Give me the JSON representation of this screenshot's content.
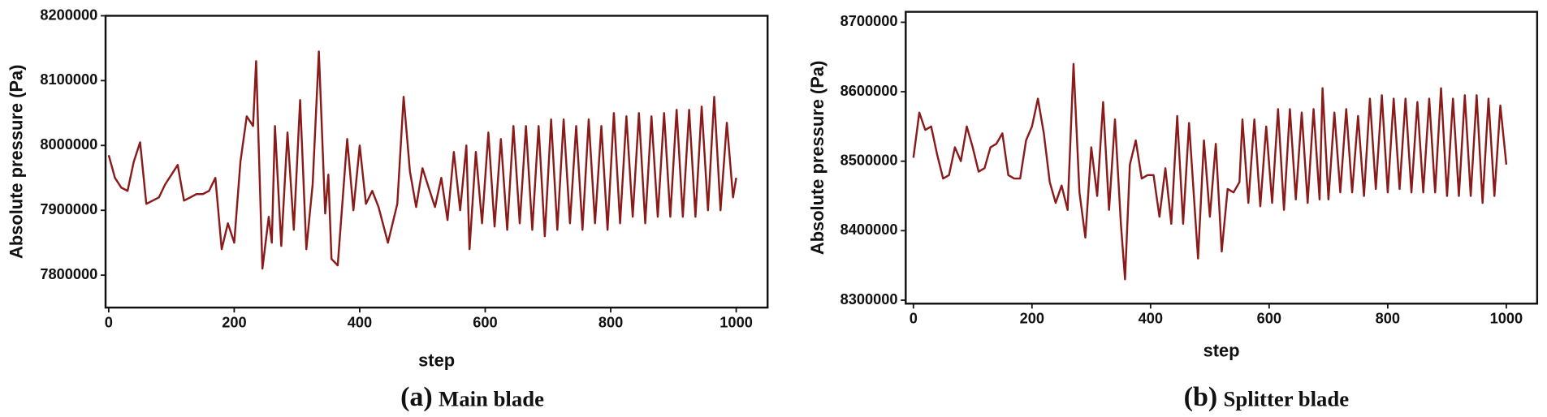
{
  "chart_data": [
    {
      "type": "line",
      "xlabel": "step",
      "ylabel": "Absolute pressure (Pa)",
      "caption_label": "(a)",
      "caption": "Main blade",
      "color": "#8b1a1a",
      "xlim": [
        -5,
        1050
      ],
      "xticks": [
        0,
        200,
        400,
        600,
        800,
        1000
      ],
      "ylim": [
        7750000,
        8200000
      ],
      "yticks": [
        7800000,
        7900000,
        8000000,
        8100000,
        8200000
      ],
      "grid": false,
      "x": [
        0,
        10,
        20,
        30,
        40,
        50,
        60,
        70,
        80,
        90,
        100,
        110,
        120,
        130,
        140,
        150,
        160,
        170,
        180,
        190,
        200,
        210,
        220,
        230,
        235,
        245,
        255,
        260,
        265,
        275,
        285,
        295,
        305,
        315,
        325,
        335,
        345,
        350,
        355,
        365,
        380,
        390,
        400,
        410,
        420,
        430,
        445,
        460,
        470,
        480,
        490,
        500,
        510,
        520,
        530,
        540,
        550,
        560,
        570,
        575,
        585,
        595,
        605,
        615,
        625,
        635,
        645,
        655,
        665,
        675,
        685,
        695,
        705,
        715,
        725,
        735,
        745,
        755,
        765,
        775,
        785,
        795,
        805,
        815,
        825,
        835,
        845,
        855,
        865,
        875,
        885,
        895,
        905,
        915,
        925,
        935,
        945,
        955,
        965,
        975,
        985,
        995,
        1000
      ],
      "values": [
        7985000,
        7950000,
        7935000,
        7930000,
        7975000,
        8005000,
        7910000,
        7915000,
        7920000,
        7940000,
        7955000,
        7970000,
        7915000,
        7920000,
        7925000,
        7925000,
        7930000,
        7950000,
        7840000,
        7880000,
        7850000,
        7975000,
        8045000,
        8030000,
        8130000,
        7810000,
        7890000,
        7850000,
        8030000,
        7845000,
        8020000,
        7870000,
        8070000,
        7840000,
        7940000,
        8145000,
        7895000,
        7955000,
        7825000,
        7815000,
        8010000,
        7900000,
        8000000,
        7910000,
        7930000,
        7905000,
        7850000,
        7910000,
        8075000,
        7960000,
        7905000,
        7965000,
        7935000,
        7905000,
        7950000,
        7885000,
        7990000,
        7900000,
        8000000,
        7840000,
        7990000,
        7880000,
        8020000,
        7875000,
        8010000,
        7870000,
        8030000,
        7880000,
        8030000,
        7870000,
        8030000,
        7860000,
        8040000,
        7870000,
        8040000,
        7880000,
        8030000,
        7870000,
        8040000,
        7880000,
        8030000,
        7870000,
        8050000,
        7880000,
        8045000,
        7890000,
        8050000,
        7880000,
        8045000,
        7890000,
        8050000,
        7890000,
        8055000,
        7890000,
        8055000,
        7890000,
        8060000,
        7900000,
        8075000,
        7900000,
        8035000,
        7920000,
        7950000
      ]
    },
    {
      "type": "line",
      "xlabel": "step",
      "ylabel": "Absolute pressure (Pa)",
      "caption_label": "(b)",
      "caption": "Splitter blade",
      "color": "#8b1a1a",
      "xlim": [
        -13,
        1052
      ],
      "xticks": [
        0,
        200,
        400,
        600,
        800,
        1000
      ],
      "ylim": [
        8295000,
        8715000
      ],
      "yticks": [
        8300000,
        8400000,
        8500000,
        8600000,
        8700000
      ],
      "grid": false,
      "x": [
        0,
        10,
        20,
        30,
        40,
        50,
        60,
        70,
        80,
        90,
        100,
        110,
        120,
        130,
        140,
        150,
        160,
        170,
        180,
        190,
        200,
        210,
        220,
        230,
        240,
        250,
        260,
        270,
        280,
        290,
        300,
        310,
        320,
        330,
        340,
        350,
        357,
        365,
        375,
        385,
        395,
        405,
        415,
        425,
        435,
        445,
        455,
        465,
        480,
        490,
        500,
        510,
        520,
        530,
        540,
        550,
        555,
        565,
        575,
        585,
        595,
        605,
        615,
        625,
        635,
        645,
        655,
        665,
        675,
        685,
        690,
        700,
        710,
        720,
        730,
        740,
        750,
        760,
        770,
        780,
        790,
        800,
        810,
        820,
        830,
        840,
        850,
        860,
        870,
        880,
        890,
        900,
        910,
        920,
        930,
        940,
        950,
        960,
        970,
        980,
        990,
        1000
      ],
      "values": [
        8505000,
        8570000,
        8545000,
        8550000,
        8510000,
        8475000,
        8480000,
        8520000,
        8500000,
        8550000,
        8520000,
        8485000,
        8490000,
        8520000,
        8525000,
        8540000,
        8480000,
        8475000,
        8475000,
        8530000,
        8550000,
        8590000,
        8540000,
        8470000,
        8440000,
        8465000,
        8430000,
        8640000,
        8455000,
        8390000,
        8520000,
        8450000,
        8585000,
        8430000,
        8560000,
        8410000,
        8330000,
        8495000,
        8530000,
        8475000,
        8480000,
        8480000,
        8420000,
        8490000,
        8410000,
        8565000,
        8410000,
        8555000,
        8360000,
        8530000,
        8420000,
        8525000,
        8370000,
        8460000,
        8455000,
        8470000,
        8560000,
        8440000,
        8560000,
        8435000,
        8550000,
        8440000,
        8575000,
        8430000,
        8575000,
        8445000,
        8570000,
        8440000,
        8575000,
        8445000,
        8605000,
        8445000,
        8570000,
        8455000,
        8575000,
        8455000,
        8565000,
        8450000,
        8590000,
        8460000,
        8595000,
        8455000,
        8590000,
        8460000,
        8590000,
        8455000,
        8585000,
        8455000,
        8590000,
        8455000,
        8605000,
        8450000,
        8590000,
        8450000,
        8595000,
        8450000,
        8595000,
        8440000,
        8590000,
        8450000,
        8580000,
        8495000
      ]
    }
  ]
}
